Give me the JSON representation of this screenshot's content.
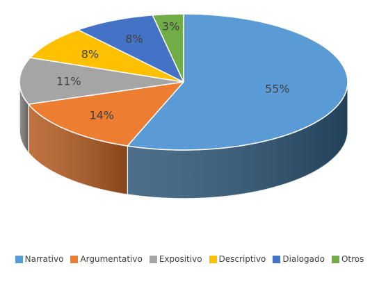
{
  "chart_data": {
    "type": "pie",
    "title": "",
    "three_d": true,
    "legend_position": "bottom",
    "start": "top, clockwise",
    "series": [
      {
        "name": "Narrativo",
        "value": 55,
        "label": "55%",
        "color": "#5b9bd5",
        "side_color": "#2d5677"
      },
      {
        "name": "Argumentativo",
        "value": 14,
        "label": "14%",
        "color": "#ed7d31",
        "side_color": "#b35a1f"
      },
      {
        "name": "Expositivo",
        "value": 11,
        "label": "11%",
        "color": "#a5a5a5",
        "side_color": "#7a7a7a"
      },
      {
        "name": "Descriptivo",
        "value": 8,
        "label": "8%",
        "color": "#ffc000",
        "side_color": "#c09000"
      },
      {
        "name": "Dialogado",
        "value": 8,
        "label": "8%",
        "color": "#4472c4",
        "side_color": "#2f528f"
      },
      {
        "name": "Otros",
        "value": 3,
        "label": "3%",
        "color": "#70ad47",
        "side_color": "#4e7a31"
      }
    ]
  }
}
